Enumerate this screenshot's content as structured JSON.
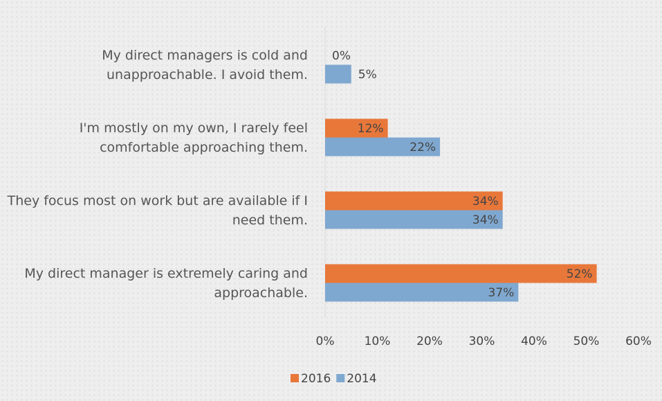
{
  "chart_data": {
    "type": "bar",
    "orientation": "horizontal",
    "categories": [
      "My direct managers is cold and unapproachable. I avoid them.",
      "I'm mostly on my own, I rarely feel comfortable approaching them.",
      "They focus most on work but are available if I need them.",
      "My direct manager is extremely caring and approachable."
    ],
    "series": [
      {
        "name": "2016",
        "color": "#e8773a",
        "values": [
          0,
          12,
          34,
          52
        ],
        "value_labels": [
          "0%",
          "12%",
          "34%",
          "52%"
        ]
      },
      {
        "name": "2014",
        "color": "#7fa8d0",
        "values": [
          5,
          22,
          34,
          37
        ],
        "value_labels": [
          "5%",
          "22%",
          "34%",
          "37%"
        ]
      }
    ],
    "xlim": [
      0,
      60
    ],
    "xticks": [
      {
        "value": 0,
        "label": "0%"
      },
      {
        "value": 10,
        "label": "10%"
      },
      {
        "value": 20,
        "label": "20%"
      },
      {
        "value": 30,
        "label": "30%"
      },
      {
        "value": 40,
        "label": "40%"
      },
      {
        "value": 50,
        "label": "50%"
      },
      {
        "value": 60,
        "label": "60%"
      }
    ],
    "legend": "bottom"
  }
}
